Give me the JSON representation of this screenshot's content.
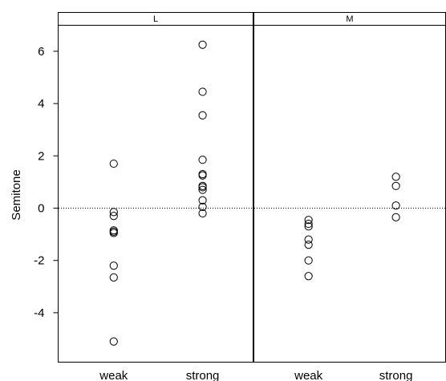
{
  "chart_data": {
    "type": "scatter",
    "ylabel": "Semitone",
    "ylim": [
      -5.9,
      7.0
    ],
    "y_ticks": [
      6,
      4,
      2,
      0,
      -2,
      -4
    ],
    "y_tick_labels": [
      "6",
      "4",
      "2",
      "0",
      "-2",
      "-4"
    ],
    "reference_line": {
      "y": 0,
      "style": "dotted"
    },
    "marker": "open-circle",
    "grid": false,
    "categories": [
      "weak",
      "strong"
    ],
    "panels": [
      {
        "label": "L",
        "points": [
          {
            "category": "weak",
            "values": [
              1.7,
              -0.15,
              -0.3,
              -0.85,
              -0.9,
              -0.95,
              -2.2,
              -2.65,
              -5.1
            ]
          },
          {
            "category": "strong",
            "values": [
              6.25,
              4.45,
              3.55,
              1.85,
              1.3,
              1.25,
              0.85,
              0.8,
              0.7,
              0.3,
              0.05,
              -0.2
            ]
          }
        ]
      },
      {
        "label": "M",
        "points": [
          {
            "category": "weak",
            "values": [
              -0.45,
              -0.6,
              -0.7,
              -1.2,
              -1.4,
              -2.0,
              -2.6
            ]
          },
          {
            "category": "strong",
            "values": [
              1.2,
              0.85,
              0.1,
              -0.35
            ]
          }
        ]
      }
    ]
  }
}
